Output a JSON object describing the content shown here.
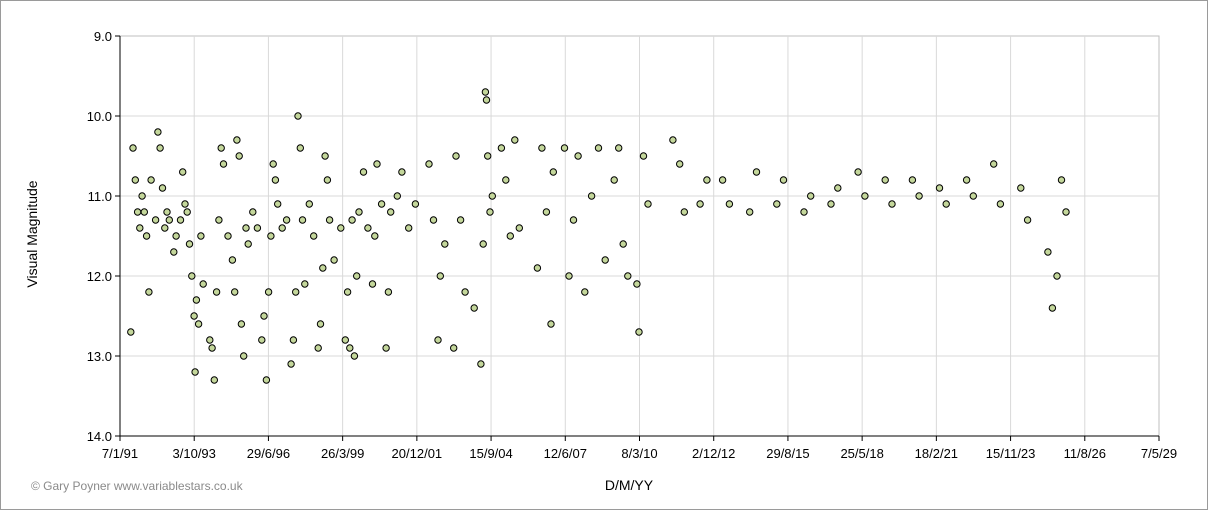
{
  "chart_data": {
    "type": "scatter",
    "xlabel": "D/M/YY",
    "ylabel": "Visual Magnitude",
    "credit": "© Gary Poyner www.variablestars.co.uk",
    "y_reversed": true,
    "ylim": [
      9.0,
      14.0
    ],
    "y_ticks": [
      "9.0",
      "10.0",
      "11.0",
      "12.0",
      "13.0",
      "14.0"
    ],
    "x_ticks": [
      "7/1/91",
      "3/10/93",
      "29/6/96",
      "26/3/99",
      "20/12/01",
      "15/9/04",
      "12/6/07",
      "8/3/10",
      "2/12/12",
      "29/8/15",
      "25/5/18",
      "18/2/21",
      "15/11/23",
      "11/8/26",
      "7/5/29"
    ],
    "grid": true,
    "marker_color": "#c4d79b",
    "series": [
      {
        "points": [
          [
            "1991-06-01",
            12.7
          ],
          [
            "1991-07-01",
            10.4
          ],
          [
            "1991-08-01",
            10.8
          ],
          [
            "1991-09-01",
            11.2
          ],
          [
            "1991-10-01",
            11.4
          ],
          [
            "1991-11-01",
            11.0
          ],
          [
            "1991-12-01",
            11.2
          ],
          [
            "1992-01-01",
            11.5
          ],
          [
            "1992-02-01",
            12.2
          ],
          [
            "1992-03-01",
            10.8
          ],
          [
            "1992-05-01",
            11.3
          ],
          [
            "1992-06-01",
            10.2
          ],
          [
            "1992-07-01",
            10.4
          ],
          [
            "1992-08-01",
            10.9
          ],
          [
            "1992-09-01",
            11.4
          ],
          [
            "1992-10-01",
            11.2
          ],
          [
            "1992-11-01",
            11.3
          ],
          [
            "1993-01-01",
            11.7
          ],
          [
            "1993-02-01",
            11.5
          ],
          [
            "1993-04-01",
            11.3
          ],
          [
            "1993-05-01",
            10.7
          ],
          [
            "1993-06-01",
            11.1
          ],
          [
            "1993-07-01",
            11.2
          ],
          [
            "1993-08-01",
            11.6
          ],
          [
            "1993-09-01",
            12.0
          ],
          [
            "1993-10-01",
            12.5
          ],
          [
            "1993-10-15",
            13.2
          ],
          [
            "1993-11-01",
            12.3
          ],
          [
            "1993-12-01",
            12.6
          ],
          [
            "1994-01-01",
            11.5
          ],
          [
            "1994-02-01",
            12.1
          ],
          [
            "1994-05-01",
            12.8
          ],
          [
            "1994-06-01",
            12.9
          ],
          [
            "1994-07-01",
            13.3
          ],
          [
            "1994-08-01",
            12.2
          ],
          [
            "1994-09-01",
            11.3
          ],
          [
            "1994-10-01",
            10.4
          ],
          [
            "1994-11-01",
            10.6
          ],
          [
            "1995-01-01",
            11.5
          ],
          [
            "1995-03-01",
            11.8
          ],
          [
            "1995-04-01",
            12.2
          ],
          [
            "1995-05-01",
            10.3
          ],
          [
            "1995-06-01",
            10.5
          ],
          [
            "1995-07-01",
            12.6
          ],
          [
            "1995-08-01",
            13.0
          ],
          [
            "1995-09-01",
            11.4
          ],
          [
            "1995-10-01",
            11.6
          ],
          [
            "1995-12-01",
            11.2
          ],
          [
            "1996-02-01",
            11.4
          ],
          [
            "1996-04-01",
            12.8
          ],
          [
            "1996-05-01",
            12.5
          ],
          [
            "1996-06-01",
            13.3
          ],
          [
            "1996-07-01",
            12.2
          ],
          [
            "1996-08-01",
            11.5
          ],
          [
            "1996-09-01",
            10.6
          ],
          [
            "1996-10-01",
            10.8
          ],
          [
            "1996-11-01",
            11.1
          ],
          [
            "1997-01-01",
            11.4
          ],
          [
            "1997-03-01",
            11.3
          ],
          [
            "1997-05-01",
            13.1
          ],
          [
            "1997-06-01",
            12.8
          ],
          [
            "1997-07-01",
            12.2
          ],
          [
            "1997-08-01",
            10.0
          ],
          [
            "1997-09-01",
            10.4
          ],
          [
            "1997-10-01",
            11.3
          ],
          [
            "1997-11-01",
            12.1
          ],
          [
            "1998-01-01",
            11.1
          ],
          [
            "1998-03-01",
            11.5
          ],
          [
            "1998-05-01",
            12.9
          ],
          [
            "1998-06-01",
            12.6
          ],
          [
            "1998-07-01",
            11.9
          ],
          [
            "1998-08-01",
            10.5
          ],
          [
            "1998-09-01",
            10.8
          ],
          [
            "1998-10-01",
            11.3
          ],
          [
            "1998-12-01",
            11.8
          ],
          [
            "1999-03-01",
            11.4
          ],
          [
            "1999-05-01",
            12.8
          ],
          [
            "1999-06-01",
            12.2
          ],
          [
            "1999-07-01",
            12.9
          ],
          [
            "1999-08-01",
            11.3
          ],
          [
            "1999-09-01",
            13.0
          ],
          [
            "1999-10-01",
            12.0
          ],
          [
            "1999-11-01",
            11.2
          ],
          [
            "2000-01-01",
            10.7
          ],
          [
            "2000-03-01",
            11.4
          ],
          [
            "2000-05-01",
            12.1
          ],
          [
            "2000-06-01",
            11.5
          ],
          [
            "2000-07-01",
            10.6
          ],
          [
            "2000-09-01",
            11.1
          ],
          [
            "2000-11-01",
            12.9
          ],
          [
            "2000-12-01",
            12.2
          ],
          [
            "2001-01-01",
            11.2
          ],
          [
            "2001-04-01",
            11.0
          ],
          [
            "2001-06-01",
            10.7
          ],
          [
            "2001-09-01",
            11.4
          ],
          [
            "2001-12-01",
            11.1
          ],
          [
            "2002-06-01",
            10.6
          ],
          [
            "2002-08-01",
            11.3
          ],
          [
            "2002-10-01",
            12.8
          ],
          [
            "2002-11-01",
            12.0
          ],
          [
            "2003-01-01",
            11.6
          ],
          [
            "2003-05-01",
            12.9
          ],
          [
            "2003-06-01",
            10.5
          ],
          [
            "2003-08-01",
            11.3
          ],
          [
            "2003-10-01",
            12.2
          ],
          [
            "2004-02-01",
            12.4
          ],
          [
            "2004-05-01",
            13.1
          ],
          [
            "2004-06-01",
            11.6
          ],
          [
            "2004-07-01",
            9.7
          ],
          [
            "2004-07-15",
            9.8
          ],
          [
            "2004-08-01",
            10.5
          ],
          [
            "2004-09-01",
            11.2
          ],
          [
            "2004-10-01",
            11.0
          ],
          [
            "2005-02-01",
            10.4
          ],
          [
            "2005-04-01",
            10.8
          ],
          [
            "2005-06-01",
            11.5
          ],
          [
            "2005-08-01",
            10.3
          ],
          [
            "2005-10-01",
            11.4
          ],
          [
            "2006-06-01",
            11.9
          ],
          [
            "2006-08-01",
            10.4
          ],
          [
            "2006-10-01",
            11.2
          ],
          [
            "2006-12-01",
            12.6
          ],
          [
            "2007-01-01",
            10.7
          ],
          [
            "2007-06-01",
            10.4
          ],
          [
            "2007-08-01",
            12.0
          ],
          [
            "2007-10-01",
            11.3
          ],
          [
            "2007-12-01",
            10.5
          ],
          [
            "2008-03-01",
            12.2
          ],
          [
            "2008-06-01",
            11.0
          ],
          [
            "2008-09-01",
            10.4
          ],
          [
            "2008-12-01",
            11.8
          ],
          [
            "2009-04-01",
            10.8
          ],
          [
            "2009-06-01",
            10.4
          ],
          [
            "2009-08-01",
            11.6
          ],
          [
            "2009-10-01",
            12.0
          ],
          [
            "2010-02-01",
            12.1
          ],
          [
            "2010-03-01",
            12.7
          ],
          [
            "2010-05-01",
            10.5
          ],
          [
            "2010-07-01",
            11.1
          ],
          [
            "2011-06-01",
            10.3
          ],
          [
            "2011-09-01",
            10.6
          ],
          [
            "2011-11-01",
            11.2
          ],
          [
            "2012-06-01",
            11.1
          ],
          [
            "2012-09-01",
            10.8
          ],
          [
            "2013-04-01",
            10.8
          ],
          [
            "2013-07-01",
            11.1
          ],
          [
            "2014-04-01",
            11.2
          ],
          [
            "2014-07-01",
            10.7
          ],
          [
            "2015-04-01",
            11.1
          ],
          [
            "2015-07-01",
            10.8
          ],
          [
            "2016-04-01",
            11.2
          ],
          [
            "2016-07-01",
            11.0
          ],
          [
            "2017-04-01",
            11.1
          ],
          [
            "2017-07-01",
            10.9
          ],
          [
            "2018-04-01",
            10.7
          ],
          [
            "2018-07-01",
            11.0
          ],
          [
            "2019-04-01",
            10.8
          ],
          [
            "2019-07-01",
            11.1
          ],
          [
            "2020-04-01",
            10.8
          ],
          [
            "2020-07-01",
            11.0
          ],
          [
            "2021-04-01",
            10.9
          ],
          [
            "2021-07-01",
            11.1
          ],
          [
            "2022-04-01",
            10.8
          ],
          [
            "2022-07-01",
            11.0
          ],
          [
            "2023-04-01",
            10.6
          ],
          [
            "2023-07-01",
            11.1
          ],
          [
            "2024-04-01",
            10.9
          ],
          [
            "2024-07-01",
            11.3
          ],
          [
            "2025-04-01",
            11.7
          ],
          [
            "2025-06-01",
            12.4
          ],
          [
            "2025-08-01",
            12.0
          ],
          [
            "2025-10-01",
            10.8
          ],
          [
            "2025-12-01",
            11.2
          ]
        ]
      }
    ]
  }
}
